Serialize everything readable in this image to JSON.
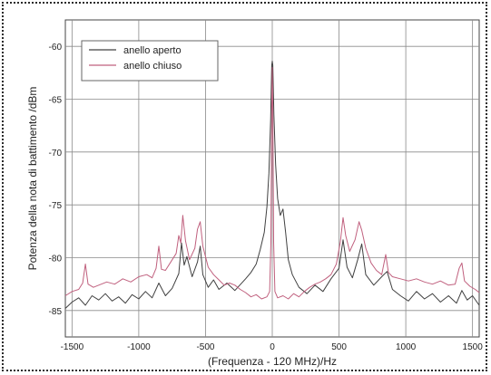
{
  "chart_data": {
    "type": "line",
    "xlabel": "(Frequenza - 120 MHz)/Hz",
    "ylabel": "Potenza della nota di battimento /dBm",
    "xlim": [
      -1550,
      1550
    ],
    "ylim": [
      -87.5,
      -57.5
    ],
    "x_ticks": [
      -1500,
      -1000,
      -500,
      0,
      500,
      1000,
      1500
    ],
    "y_ticks": [
      -60,
      -65,
      -70,
      -75,
      -80,
      -85
    ],
    "x_tick_labels": [
      "-1500",
      "-1000",
      "-500",
      "0",
      "500",
      "1000",
      "1500"
    ],
    "y_tick_labels": [
      "-60",
      "-65",
      "-70",
      "-75",
      "-80",
      "-85"
    ],
    "grid": true,
    "legend_position": "top-left",
    "series": [
      {
        "name": "anello aperto",
        "color": "#404040",
        "points": [
          [
            -1550,
            -84.8
          ],
          [
            -1500,
            -84.2
          ],
          [
            -1450,
            -83.8
          ],
          [
            -1400,
            -84.5
          ],
          [
            -1350,
            -83.6
          ],
          [
            -1300,
            -84.0
          ],
          [
            -1250,
            -83.4
          ],
          [
            -1200,
            -84.1
          ],
          [
            -1150,
            -83.7
          ],
          [
            -1100,
            -84.3
          ],
          [
            -1050,
            -83.5
          ],
          [
            -1000,
            -83.9
          ],
          [
            -950,
            -83.2
          ],
          [
            -900,
            -83.8
          ],
          [
            -850,
            -82.4
          ],
          [
            -800,
            -83.6
          ],
          [
            -750,
            -82.9
          ],
          [
            -700,
            -81.5
          ],
          [
            -680,
            -78.6
          ],
          [
            -660,
            -80.7
          ],
          [
            -640,
            -79.9
          ],
          [
            -600,
            -81.8
          ],
          [
            -560,
            -80.4
          ],
          [
            -540,
            -78.9
          ],
          [
            -520,
            -81.6
          ],
          [
            -480,
            -82.8
          ],
          [
            -440,
            -82.1
          ],
          [
            -400,
            -83.0
          ],
          [
            -340,
            -82.4
          ],
          [
            -280,
            -83.1
          ],
          [
            -200,
            -82.0
          ],
          [
            -160,
            -81.4
          ],
          [
            -120,
            -80.6
          ],
          [
            -90,
            -79.2
          ],
          [
            -60,
            -77.6
          ],
          [
            -40,
            -75.2
          ],
          [
            -25,
            -72.0
          ],
          [
            -12,
            -67.0
          ],
          [
            -4,
            -61.8
          ],
          [
            0,
            -61.4
          ],
          [
            4,
            -61.8
          ],
          [
            12,
            -66.5
          ],
          [
            25,
            -71.2
          ],
          [
            40,
            -74.4
          ],
          [
            60,
            -76.0
          ],
          [
            80,
            -75.4
          ],
          [
            100,
            -77.6
          ],
          [
            120,
            -80.2
          ],
          [
            150,
            -81.6
          ],
          [
            200,
            -82.8
          ],
          [
            260,
            -83.4
          ],
          [
            320,
            -82.6
          ],
          [
            380,
            -83.2
          ],
          [
            440,
            -82.0
          ],
          [
            500,
            -81.0
          ],
          [
            530,
            -78.3
          ],
          [
            560,
            -80.9
          ],
          [
            600,
            -81.9
          ],
          [
            640,
            -80.2
          ],
          [
            670,
            -78.7
          ],
          [
            700,
            -81.6
          ],
          [
            760,
            -82.6
          ],
          [
            820,
            -81.8
          ],
          [
            860,
            -81.3
          ],
          [
            900,
            -83.0
          ],
          [
            960,
            -83.6
          ],
          [
            1020,
            -84.1
          ],
          [
            1080,
            -83.2
          ],
          [
            1140,
            -83.9
          ],
          [
            1200,
            -83.4
          ],
          [
            1260,
            -84.2
          ],
          [
            1320,
            -83.6
          ],
          [
            1380,
            -84.3
          ],
          [
            1420,
            -83.1
          ],
          [
            1460,
            -84.0
          ],
          [
            1500,
            -83.6
          ],
          [
            1550,
            -84.5
          ]
        ]
      },
      {
        "name": "anello chiuso",
        "color": "#c0607e",
        "points": [
          [
            -1550,
            -83.6
          ],
          [
            -1500,
            -83.2
          ],
          [
            -1450,
            -83.0
          ],
          [
            -1420,
            -82.4
          ],
          [
            -1400,
            -80.6
          ],
          [
            -1380,
            -82.5
          ],
          [
            -1340,
            -82.8
          ],
          [
            -1300,
            -82.6
          ],
          [
            -1240,
            -82.3
          ],
          [
            -1180,
            -82.5
          ],
          [
            -1120,
            -82.0
          ],
          [
            -1060,
            -82.3
          ],
          [
            -1000,
            -81.8
          ],
          [
            -940,
            -81.6
          ],
          [
            -900,
            -81.9
          ],
          [
            -870,
            -81.0
          ],
          [
            -850,
            -78.9
          ],
          [
            -830,
            -81.1
          ],
          [
            -800,
            -81.2
          ],
          [
            -760,
            -80.4
          ],
          [
            -720,
            -79.6
          ],
          [
            -700,
            -77.9
          ],
          [
            -685,
            -78.6
          ],
          [
            -670,
            -76.0
          ],
          [
            -650,
            -78.4
          ],
          [
            -620,
            -80.2
          ],
          [
            -580,
            -79.1
          ],
          [
            -560,
            -77.3
          ],
          [
            -540,
            -76.6
          ],
          [
            -520,
            -78.9
          ],
          [
            -480,
            -80.9
          ],
          [
            -440,
            -81.6
          ],
          [
            -400,
            -82.1
          ],
          [
            -360,
            -82.6
          ],
          [
            -320,
            -82.4
          ],
          [
            -280,
            -82.6
          ],
          [
            -240,
            -83.0
          ],
          [
            -200,
            -83.3
          ],
          [
            -160,
            -83.7
          ],
          [
            -120,
            -83.5
          ],
          [
            -80,
            -83.9
          ],
          [
            -40,
            -83.7
          ],
          [
            -20,
            -83.2
          ],
          [
            -10,
            -78.5
          ],
          [
            -4,
            -66.0
          ],
          [
            0,
            -62.0
          ],
          [
            4,
            -66.0
          ],
          [
            10,
            -78.5
          ],
          [
            20,
            -83.2
          ],
          [
            40,
            -83.8
          ],
          [
            80,
            -83.6
          ],
          [
            120,
            -83.9
          ],
          [
            160,
            -83.4
          ],
          [
            200,
            -83.7
          ],
          [
            240,
            -83.2
          ],
          [
            280,
            -82.8
          ],
          [
            320,
            -82.5
          ],
          [
            360,
            -82.3
          ],
          [
            400,
            -82.0
          ],
          [
            440,
            -81.6
          ],
          [
            480,
            -80.6
          ],
          [
            510,
            -78.5
          ],
          [
            530,
            -76.2
          ],
          [
            550,
            -77.9
          ],
          [
            580,
            -79.4
          ],
          [
            620,
            -78.3
          ],
          [
            650,
            -76.6
          ],
          [
            670,
            -77.4
          ],
          [
            700,
            -79.1
          ],
          [
            740,
            -80.5
          ],
          [
            780,
            -81.2
          ],
          [
            820,
            -81.6
          ],
          [
            850,
            -79.7
          ],
          [
            870,
            -81.4
          ],
          [
            900,
            -81.8
          ],
          [
            960,
            -82.0
          ],
          [
            1020,
            -82.2
          ],
          [
            1080,
            -82.0
          ],
          [
            1140,
            -82.3
          ],
          [
            1200,
            -82.5
          ],
          [
            1260,
            -82.2
          ],
          [
            1320,
            -82.6
          ],
          [
            1370,
            -82.5
          ],
          [
            1400,
            -81.0
          ],
          [
            1420,
            -80.5
          ],
          [
            1440,
            -82.2
          ],
          [
            1480,
            -82.7
          ],
          [
            1520,
            -83.0
          ],
          [
            1550,
            -83.3
          ]
        ]
      }
    ]
  }
}
